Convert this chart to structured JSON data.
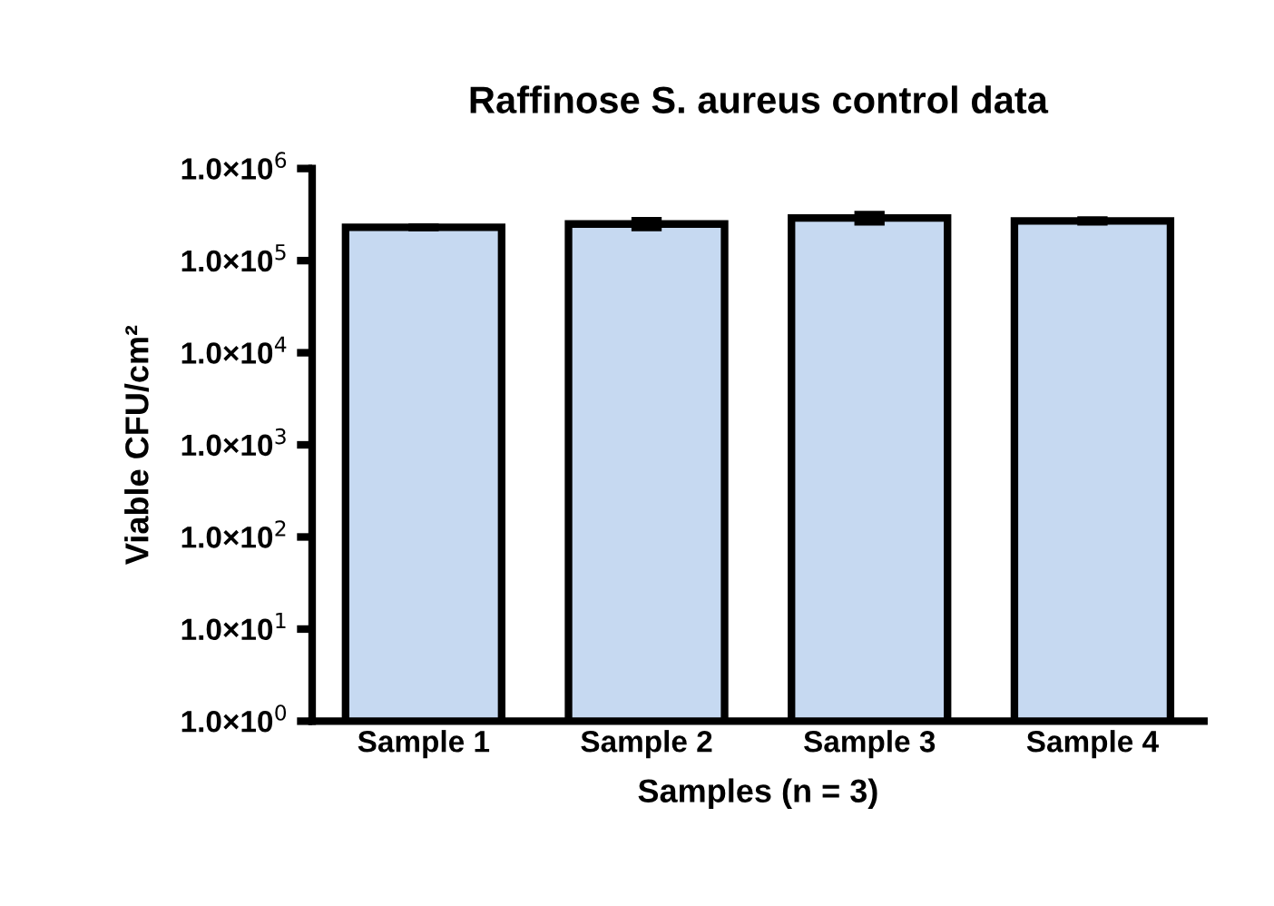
{
  "chart_data": {
    "type": "bar",
    "title": "Raffinose S. aureus control data",
    "xlabel": "Samples (n = 3)",
    "ylabel": "Viable CFU/cm²",
    "categories": [
      "Sample 1",
      "Sample 2",
      "Sample 3",
      "Sample 4"
    ],
    "values": [
      230000,
      250000,
      290000,
      270000
    ],
    "errors": [
      5000,
      25000,
      30000,
      10000
    ],
    "color": "#c6d9f1",
    "log": true,
    "ylim": [
      1,
      1000000
    ],
    "yticks": [
      {
        "value": 1,
        "label": "1.0×10$^{0}$"
      },
      {
        "value": 10,
        "label": "1.0×10$^{1}$"
      },
      {
        "value": 100,
        "label": "1.0×10$^{2}$"
      },
      {
        "value": 1000,
        "label": "1.0×10$^{3}$"
      },
      {
        "value": 10000,
        "label": "1.0×10$^{4}$"
      },
      {
        "value": 100000,
        "label": "1.0×10$^{5}$"
      },
      {
        "value": 1000000,
        "label": "1.0×10$^{6}$"
      }
    ],
    "grid": false
  }
}
